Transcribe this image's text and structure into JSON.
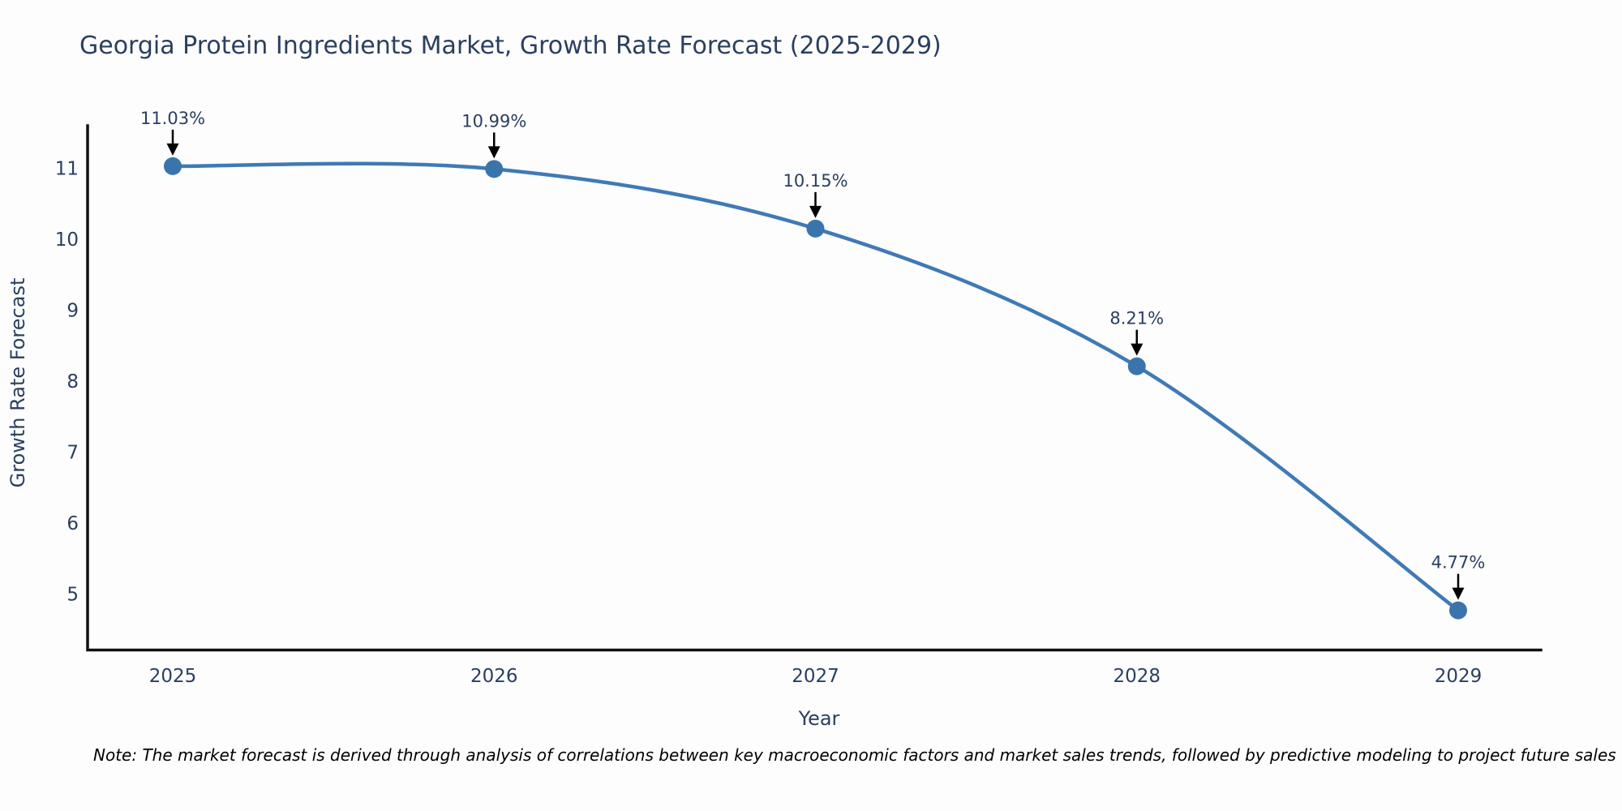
{
  "title": "Georgia Protein Ingredients Market, Growth Rate Forecast (2025-2029)",
  "footnote": "Note: The market forecast is derived through analysis of correlations between key macroeconomic factors and market sales trends, followed by predictive modeling to project future sales",
  "colors": {
    "line": "#3f7ab5",
    "marker": "#3a74ad",
    "axis": "#111111",
    "arrow": "#000000",
    "text": "#2a3f5f",
    "note": "#000000",
    "background": "#fdfdfd"
  },
  "chart_data": {
    "type": "line",
    "curve": "spline",
    "title": "Georgia Protein Ingredients Market, Growth Rate Forecast (2025-2029)",
    "x": [
      "2025",
      "2026",
      "2027",
      "2028",
      "2029"
    ],
    "values": [
      11.03,
      10.99,
      10.15,
      8.21,
      4.77
    ],
    "point_labels": [
      "11.03%",
      "10.99%",
      "10.15%",
      "8.21%",
      "4.77%"
    ],
    "xlabel": "Year",
    "ylabel": "Growth Rate Forecast",
    "yticks": [
      11,
      10,
      9,
      8,
      7,
      6,
      5
    ],
    "ylim": [
      4.19,
      11.57
    ],
    "grid": false,
    "legend": "none",
    "markers": true,
    "annotations": "value labels with downward arrows above each data point"
  }
}
